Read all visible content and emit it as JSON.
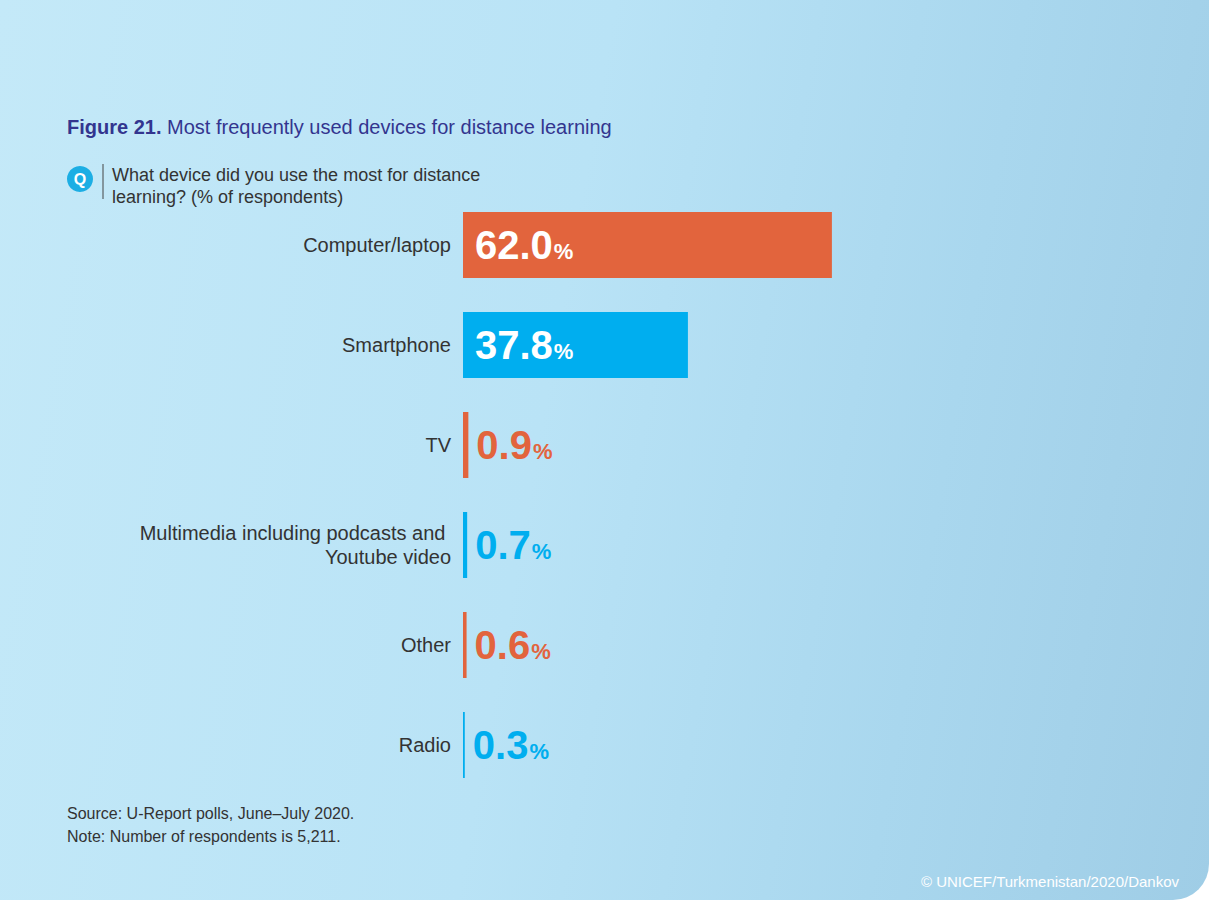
{
  "chart_data": {
    "type": "bar",
    "title": "Figure 21. Most frequently used devices for distance learning",
    "subtitle": "What device did you use the most for distance learning? (% of respondents)",
    "icon_label": "Q",
    "source": "Source: U-Report polls, June–July 2020.",
    "note": "Note: Number of respondents is 5,211.",
    "credit": "© UNICEF/Turkmenistan/2020/Dankov",
    "categories": [
      "Computer/laptop",
      "Smartphone",
      "TV",
      "Multimedia including podcasts and Youtube video",
      "Other",
      "Radio"
    ],
    "values": [
      62.0,
      37.8,
      0.9,
      0.7,
      0.6,
      0.3
    ],
    "value_labels": [
      "62.0%",
      "37.8%",
      "0.9%",
      "0.7%",
      "0.6%",
      "0.3%"
    ],
    "colors": [
      "#e2643d",
      "#00aeef",
      "#e2643d",
      "#00aeef",
      "#e2643d",
      "#00aeef"
    ],
    "xlim": [
      0,
      100
    ],
    "orientation": "horizontal",
    "data_labels": true,
    "tick_labels": "y",
    "grid": false
  }
}
